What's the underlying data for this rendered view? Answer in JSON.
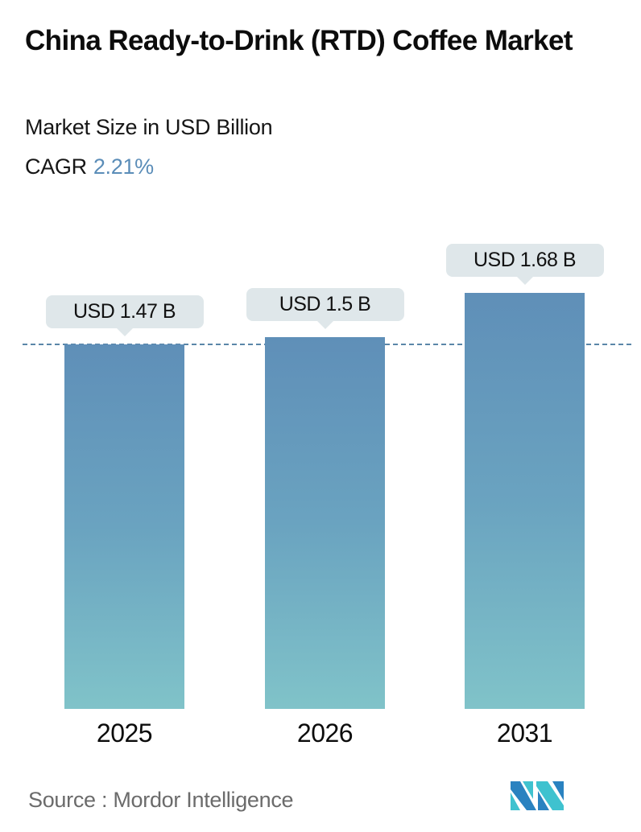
{
  "header": {
    "title": "China Ready-to-Drink (RTD) Coffee Market",
    "subtitle": "Market Size in USD Billion",
    "cagr_label": "CAGR",
    "cagr_value": "2.21%",
    "cagr_color": "#5b8db8"
  },
  "bars": [
    {
      "year": "2025",
      "label": "USD 1.47 B"
    },
    {
      "year": "2026",
      "label": "USD 1.5 B"
    },
    {
      "year": "2031",
      "label": "USD 1.68 B"
    }
  ],
  "footer": {
    "source": "Source :  Mordor Intelligence",
    "logo": "mordor-intelligence-logo"
  },
  "colors": {
    "bar_top": "#5f8fb8",
    "bar_bottom": "#80c3c9",
    "callout_bg": "#dfe7ea",
    "reference_line": "#5a86a8"
  },
  "chart_data": {
    "type": "bar",
    "title": "China Ready-to-Drink (RTD) Coffee Market",
    "subtitle": "Market Size in USD Billion",
    "categories": [
      "2025",
      "2026",
      "2031"
    ],
    "values": [
      1.47,
      1.5,
      1.68
    ],
    "data_labels": [
      "USD 1.47 B",
      "USD 1.5 B",
      "USD 1.68 B"
    ],
    "unit": "USD Billion",
    "cagr": "2.21%",
    "xlabel": "",
    "ylabel": "",
    "grid": false,
    "legend": null,
    "annotations": [
      "Dashed reference line at 2025 value (USD 1.47 B)"
    ],
    "source": "Mordor Intelligence"
  }
}
